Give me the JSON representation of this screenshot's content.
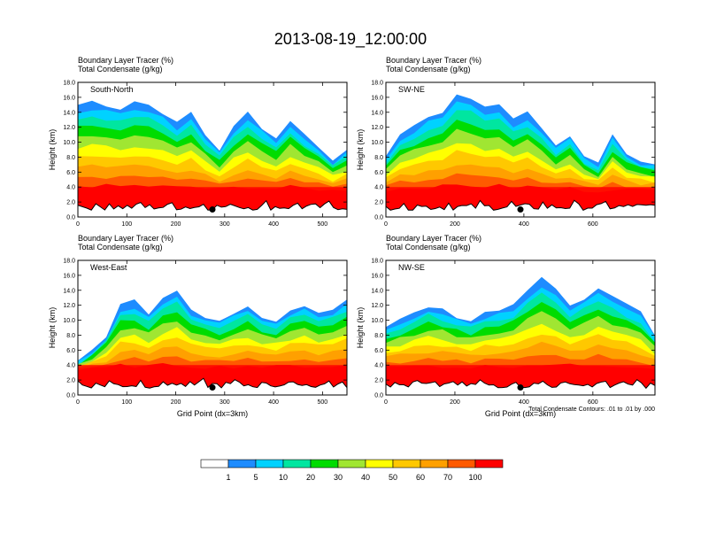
{
  "main_title": "2013-08-19_12:00:00",
  "chart_data": [
    {
      "type": "heatmap",
      "panel": "South-North",
      "title_line1": "Boundary Layer Tracer   (%)",
      "title_line2": "Total Condensate   (g/kg)",
      "ylabel": "Height (km)",
      "xlabel": "",
      "xlim": [
        0,
        550
      ],
      "xticks": [
        "0",
        "100",
        "200",
        "300",
        "400",
        "500"
      ],
      "xtick_values": [
        0,
        100,
        200,
        300,
        400,
        500
      ],
      "ylim": [
        0,
        18
      ],
      "yticks": [
        "0.0",
        "2.0",
        "4.0",
        "6.0",
        "8.0",
        "10.0",
        "12.0",
        "14.0",
        "16.0",
        "18.0"
      ],
      "ytick_values": [
        0,
        2,
        4,
        6,
        8,
        10,
        12,
        14,
        16,
        18
      ],
      "marker_x": 275,
      "cloud_top_profile_km": [
        15.0,
        15.5,
        15.0,
        14.5,
        15.5,
        15.0,
        14.0,
        12.5,
        14.0,
        11.0,
        9.0,
        12.0,
        14.0,
        12.0,
        10.5,
        13.0,
        11.0,
        9.5,
        7.5,
        9.0
      ]
    },
    {
      "type": "heatmap",
      "panel": "SW-NE",
      "title_line1": "Boundary Layer Tracer   (%)",
      "title_line2": "Total Condensate   (g/kg)",
      "ylabel": "Height (km)",
      "xlabel": "",
      "xlim": [
        0,
        780
      ],
      "xticks": [
        "0",
        "200",
        "400",
        "600"
      ],
      "xtick_values": [
        0,
        200,
        400,
        600
      ],
      "ylim": [
        0,
        18
      ],
      "yticks": [
        "0.0",
        "2.0",
        "4.0",
        "6.0",
        "8.0",
        "10.0",
        "12.0",
        "14.0",
        "16.0",
        "18.0"
      ],
      "ytick_values": [
        0,
        2,
        4,
        6,
        8,
        10,
        12,
        14,
        16,
        18
      ],
      "marker_x": 390,
      "cloud_top_profile_km": [
        8.0,
        11.0,
        12.0,
        13.5,
        14.0,
        16.5,
        16.0,
        14.5,
        15.0,
        13.0,
        14.0,
        12.0,
        9.5,
        11.0,
        8.0,
        7.0,
        11.0,
        8.5,
        7.5,
        7.0
      ]
    },
    {
      "type": "heatmap",
      "panel": "West-East",
      "title_line1": "Boundary Layer Tracer   (%)",
      "title_line2": "Total Condensate   (g/kg)",
      "ylabel": "Height (km)",
      "xlabel": "Grid Point (dx=3km)",
      "xlim": [
        0,
        550
      ],
      "xticks": [
        "0",
        "100",
        "200",
        "300",
        "400",
        "500"
      ],
      "xtick_values": [
        0,
        100,
        200,
        300,
        400,
        500
      ],
      "ylim": [
        0,
        18
      ],
      "yticks": [
        "0.0",
        "2.0",
        "4.0",
        "6.0",
        "8.0",
        "10.0",
        "12.0",
        "14.0",
        "16.0",
        "18.0"
      ],
      "ytick_values": [
        0,
        2,
        4,
        6,
        8,
        10,
        12,
        14,
        16,
        18
      ],
      "marker_x": 275,
      "cloud_top_profile_km": [
        4.5,
        6.0,
        8.0,
        12.0,
        12.5,
        11.0,
        13.0,
        14.0,
        11.5,
        10.5,
        10.0,
        11.0,
        12.0,
        10.5,
        10.0,
        11.5,
        12.0,
        11.0,
        11.5,
        13.0
      ]
    },
    {
      "type": "heatmap",
      "panel": "NW-SE",
      "title_line1": "Boundary Layer Tracer   (%)",
      "title_line2": "Total Condensate   (g/kg)",
      "ylabel": "Height (km)",
      "xlabel": "Grid Point (dx=3km)",
      "xlim": [
        0,
        780
      ],
      "xticks": [
        "0",
        "200",
        "400",
        "600"
      ],
      "xtick_values": [
        0,
        200,
        400,
        600
      ],
      "ylim": [
        0,
        18
      ],
      "yticks": [
        "0.0",
        "2.0",
        "4.0",
        "6.0",
        "8.0",
        "10.0",
        "12.0",
        "14.0",
        "16.0",
        "18.0"
      ],
      "ytick_values": [
        0,
        2,
        4,
        6,
        8,
        10,
        12,
        14,
        16,
        18
      ],
      "marker_x": 390,
      "contour_note": "Total Condensate Contours: .01 to .01 by .000",
      "cloud_top_profile_km": [
        9.0,
        10.0,
        11.0,
        12.0,
        11.5,
        10.5,
        10.0,
        11.0,
        11.5,
        12.0,
        14.0,
        15.5,
        14.0,
        12.0,
        13.0,
        14.5,
        13.0,
        12.0,
        11.0,
        8.0
      ]
    }
  ],
  "colorbar": {
    "levels": [
      "1",
      "5",
      "10",
      "20",
      "30",
      "40",
      "50",
      "60",
      "70",
      "100"
    ],
    "colors": [
      "#ffffff",
      "#1e8cff",
      "#00d2ff",
      "#00e6a0",
      "#00dc00",
      "#a0e632",
      "#ffff00",
      "#ffc800",
      "#ffa000",
      "#ff5a00",
      "#ff0000"
    ]
  }
}
